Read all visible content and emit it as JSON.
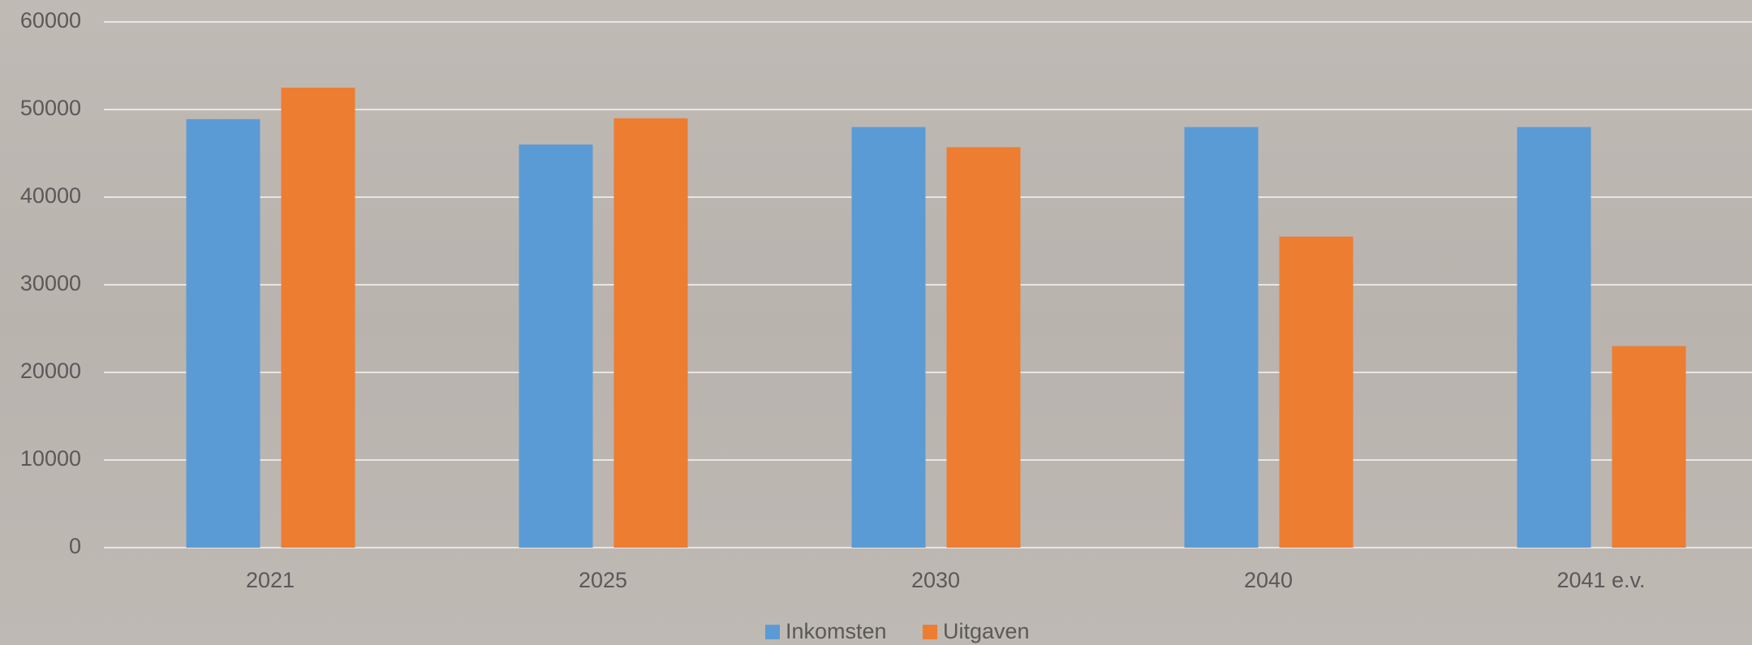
{
  "chart_data": {
    "type": "bar",
    "categories": [
      "2021",
      "2025",
      "2030",
      "2040",
      "2041 e.v."
    ],
    "series": [
      {
        "name": "Inkomsten",
        "color": "#5b9bd5",
        "values": [
          48900,
          46000,
          48000,
          48000,
          48000
        ]
      },
      {
        "name": "Uitgaven",
        "color": "#ed7d31",
        "values": [
          52500,
          49000,
          45700,
          35500,
          23000
        ]
      }
    ],
    "ylim": [
      0,
      60000
    ],
    "yticks": [
      0,
      10000,
      20000,
      30000,
      40000,
      50000,
      60000
    ],
    "grid": true,
    "legend": "bottom"
  }
}
